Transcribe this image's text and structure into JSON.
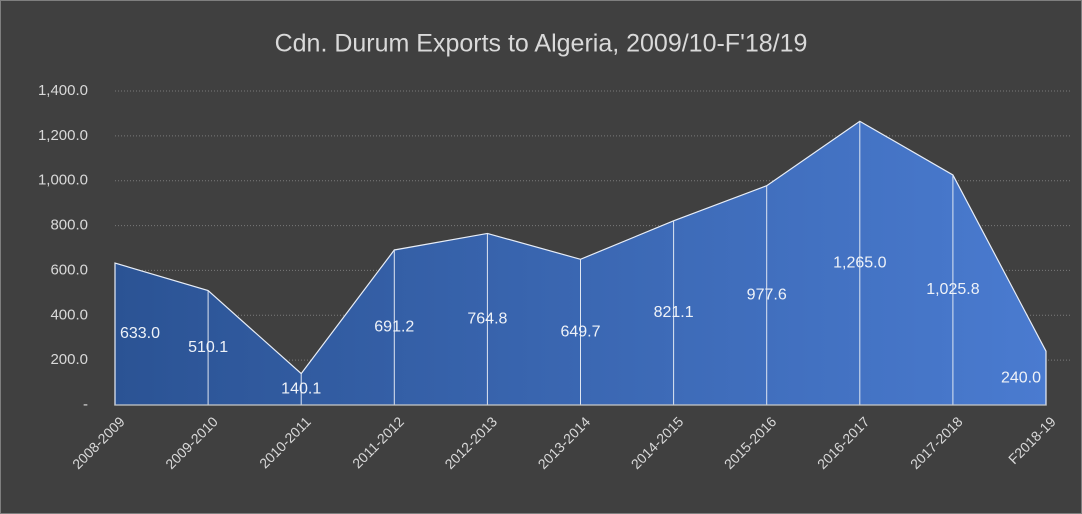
{
  "chart_data": {
    "type": "area",
    "title": "Cdn. Durum Exports to Algeria, 2009/10-F'18/19",
    "categories": [
      "2008-2009",
      "2009-2010",
      "2010-2011",
      "2011-2012",
      "2012-2013",
      "2013-2014",
      "2014-2015",
      "2015-2016",
      "2016-2017",
      "2017-2018",
      "F2018-19"
    ],
    "values": [
      633.0,
      510.1,
      140.1,
      691.2,
      764.8,
      649.7,
      821.1,
      977.6,
      1265.0,
      1025.8,
      240.0
    ],
    "value_labels": [
      "633.0",
      "510.1",
      "140.1",
      "691.2",
      "764.8",
      "649.7",
      "821.1",
      "977.6",
      "1,265.0",
      "1,025.8",
      "240.0"
    ],
    "color": "#4472c4",
    "ylim": [
      0,
      1400
    ],
    "yticks": [
      {
        "value": 0,
        "label": "-"
      },
      {
        "value": 200,
        "label": "200.0"
      },
      {
        "value": 400,
        "label": "400.0"
      },
      {
        "value": 600,
        "label": "600.0"
      },
      {
        "value": 800,
        "label": "800.0"
      },
      {
        "value": 1000,
        "label": "1,000.0"
      },
      {
        "value": 1200,
        "label": "1,200.0"
      },
      {
        "value": 1400,
        "label": "1,400.0"
      }
    ],
    "grid": true
  }
}
